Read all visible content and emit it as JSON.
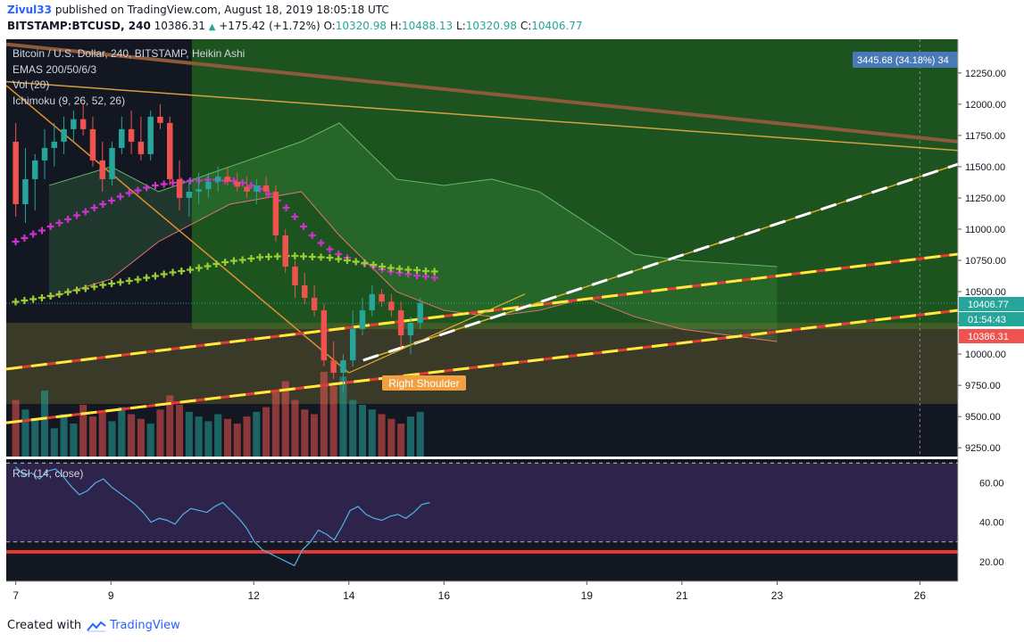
{
  "header": {
    "user": "Zivul33",
    "published": "published on TradingView.com, August 18, 2019 18:05:18 UTC",
    "symbol": "BITSTAMP:BTCUSD, 240",
    "last": "10386.31",
    "change": "+175.42 (+1.72%)",
    "o_label": "O:",
    "o": "10320.98",
    "h_label": "H:",
    "h": "10488.13",
    "l_label": "L:",
    "l": "10320.98",
    "c_label": "C:",
    "c": "10406.77"
  },
  "legend": [
    "Bitcoin / U.S. Dollar, 240, BITSTAMP, Heikin Ashi",
    "EMAS 200/50/6/3",
    "Vol (20)",
    "Ichimoku (9, 26, 52, 26)"
  ],
  "rsi_label": "RSI (14, close)",
  "price_labels": {
    "measure": "3445.68 (34.18%) 34",
    "current": "10406.77",
    "countdown": "01:54:43",
    "last": "10386.31"
  },
  "annotation": "Right Shoulder",
  "footer": {
    "prefix": "Created with",
    "brand": "TradingView"
  },
  "colors": {
    "up": "#26a69a",
    "down": "#ef5350",
    "ema": "#cc33cc",
    "ema_alt": "#9acd32",
    "support": "#e53935",
    "dash": "#ffeb3b",
    "price_axis_current": "#26a69a",
    "price_axis_last": "#ef5350"
  },
  "chart_data": {
    "type": "candlestick",
    "title": "Bitcoin / U.S. Dollar, 240, BITSTAMP, Heikin Ashi",
    "y_ticks": [
      12250,
      12000,
      11750,
      11500,
      11250,
      11000,
      10750,
      10500,
      10250,
      10000,
      9750,
      9500,
      9250
    ],
    "x_ticks": [
      {
        "label": "7",
        "value": 0.5
      },
      {
        "label": "9",
        "value": 2.5
      },
      {
        "label": "12",
        "value": 5.5
      },
      {
        "label": "14",
        "value": 7.5
      },
      {
        "label": "16",
        "value": 9.5
      },
      {
        "label": "19",
        "value": 12.5
      },
      {
        "label": "21",
        "value": 14.5
      },
      {
        "label": "23",
        "value": 16.5
      },
      {
        "label": "26",
        "value": 19.5
      }
    ],
    "ylim": [
      9180,
      12520
    ],
    "xlim": [
      0.3,
      20.3
    ],
    "rsi_ticks": [
      60,
      40,
      20
    ],
    "rsi_ylim": [
      10,
      72
    ],
    "rsi_levels": [
      70,
      30
    ],
    "ohlc": [
      [
        11700,
        11850,
        11100,
        11200
      ],
      [
        11200,
        11650,
        11050,
        11400
      ],
      [
        11400,
        11600,
        11150,
        11550
      ],
      [
        11550,
        11800,
        11400,
        11650
      ],
      [
        11650,
        11850,
        11500,
        11700
      ],
      [
        11700,
        11900,
        11600,
        11800
      ],
      [
        11800,
        11950,
        11700,
        11880
      ],
      [
        11880,
        12000,
        11750,
        11800
      ],
      [
        11800,
        11900,
        11500,
        11550
      ],
      [
        11550,
        11700,
        11300,
        11400
      ],
      [
        11400,
        11700,
        11350,
        11650
      ],
      [
        11650,
        11900,
        11600,
        11800
      ],
      [
        11800,
        11950,
        11600,
        11700
      ],
      [
        11700,
        11900,
        11550,
        11600
      ],
      [
        11600,
        11950,
        11550,
        11900
      ],
      [
        11900,
        12000,
        11800,
        11850
      ],
      [
        11850,
        11900,
        11350,
        11400
      ],
      [
        11400,
        11550,
        11150,
        11250
      ],
      [
        11250,
        11400,
        11100,
        11300
      ],
      [
        11300,
        11450,
        11200,
        11320
      ],
      [
        11320,
        11450,
        11250,
        11380
      ],
      [
        11380,
        11500,
        11300,
        11420
      ],
      [
        11420,
        11500,
        11350,
        11380
      ],
      [
        11380,
        11450,
        11300,
        11340
      ],
      [
        11340,
        11420,
        11250,
        11300
      ],
      [
        11300,
        11400,
        11200,
        11350
      ],
      [
        11350,
        11420,
        11250,
        11300
      ],
      [
        11300,
        11350,
        10900,
        10950
      ],
      [
        10950,
        11000,
        10650,
        10700
      ],
      [
        10700,
        10750,
        10450,
        10550
      ],
      [
        10550,
        10650,
        10400,
        10450
      ],
      [
        10450,
        10550,
        10300,
        10350
      ],
      [
        10350,
        10400,
        9900,
        9950
      ],
      [
        9950,
        10100,
        9800,
        9850
      ],
      [
        9850,
        10000,
        9700,
        9950
      ],
      [
        9950,
        10350,
        9900,
        10200
      ],
      [
        10200,
        10450,
        10150,
        10350
      ],
      [
        10350,
        10550,
        10300,
        10480
      ],
      [
        10480,
        10520,
        10380,
        10420
      ],
      [
        10420,
        10480,
        10300,
        10350
      ],
      [
        10350,
        10420,
        10050,
        10150
      ],
      [
        10150,
        10300,
        10000,
        10250
      ],
      [
        10250,
        10450,
        10200,
        10410
      ]
    ],
    "ema_slow": [
      10420,
      10430,
      10440,
      10450,
      10465,
      10480,
      10495,
      10510,
      10525,
      10540,
      10555,
      10565,
      10575,
      10585,
      10595,
      10610,
      10625,
      10640,
      10655,
      10665,
      10675,
      10690,
      10705,
      10720,
      10735,
      10745,
      10755,
      10765,
      10775,
      10780,
      10782,
      10785,
      10785,
      10783,
      10780,
      10776,
      10770,
      10760,
      10750,
      10740,
      10728,
      10715,
      10700,
      10690,
      10682,
      10675,
      10670,
      10665,
      10660
    ],
    "ema_fast": [
      10900,
      10930,
      10960,
      10990,
      11020,
      11050,
      11080,
      11110,
      11140,
      11170,
      11200,
      11230,
      11260,
      11290,
      11310,
      11330,
      11350,
      11360,
      11370,
      11380,
      11385,
      11390,
      11395,
      11395,
      11390,
      11385,
      11370,
      11350,
      11320,
      11280,
      11230,
      11170,
      11100,
      11020,
      10950,
      10890,
      10840,
      10800,
      10770,
      10740,
      10720,
      10700,
      10680,
      10660,
      10650,
      10640,
      10630,
      10620,
      10610
    ],
    "volume": [
      120,
      100,
      80,
      140,
      60,
      90,
      70,
      110,
      85,
      95,
      75,
      105,
      90,
      80,
      70,
      100,
      130,
      110,
      95,
      85,
      75,
      90,
      80,
      70,
      85,
      95,
      105,
      140,
      160,
      120,
      100,
      90,
      180,
      150,
      170,
      120,
      110,
      100,
      90,
      80,
      70,
      85,
      95
    ],
    "rsi": [
      68,
      64,
      65,
      62,
      66,
      67,
      63,
      58,
      54,
      56,
      60,
      62,
      58,
      55,
      52,
      49,
      45,
      40,
      42,
      41,
      39,
      44,
      47,
      46,
      45,
      48,
      50,
      46,
      42,
      37,
      30,
      26,
      24,
      22,
      20,
      18,
      26,
      30,
      36,
      34,
      31,
      38,
      46,
      48,
      44,
      42,
      41,
      43,
      44,
      42,
      45,
      49,
      50
    ]
  }
}
